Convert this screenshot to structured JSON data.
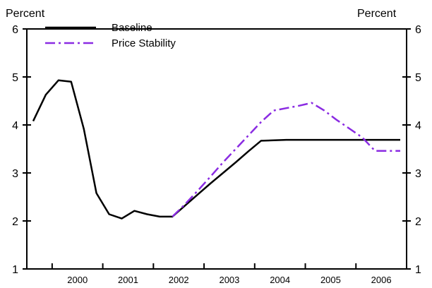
{
  "chart_data": {
    "type": "line",
    "left_axis_label": "Percent",
    "right_axis_label": "Percent",
    "ylim": [
      1,
      6
    ],
    "yticks": [
      "1",
      "2",
      "3",
      "4",
      "5",
      "6"
    ],
    "xlim": [
      1999.5,
      2007
    ],
    "x_tick_labels": [
      "2000",
      "2001",
      "2002",
      "2003",
      "2004",
      "2005",
      "2006"
    ],
    "grid": false,
    "legend_position": "top-left",
    "series": [
      {
        "name": "Baseline",
        "color": "#000000",
        "style": "solid",
        "x": [
          1999.625,
          1999.875,
          2000.125,
          2000.375,
          2000.625,
          2000.875,
          2001.125,
          2001.375,
          2001.625,
          2001.875,
          2002.125,
          2002.375,
          2002.625,
          2002.875,
          2003.125,
          2003.375,
          2003.625,
          2003.875,
          2004.125,
          2004.375,
          2004.625,
          2004.875,
          2005.125,
          2005.375,
          2005.625,
          2005.875,
          2006.125,
          2006.375,
          2006.625,
          2006.875
        ],
        "values": [
          4.08,
          4.63,
          4.93,
          4.9,
          3.92,
          2.58,
          2.14,
          2.05,
          2.21,
          2.14,
          2.09,
          2.09,
          2.32,
          2.55,
          2.78,
          3.0,
          3.22,
          3.45,
          3.67,
          3.68,
          3.69,
          3.69,
          3.69,
          3.69,
          3.69,
          3.69,
          3.69,
          3.69,
          3.69,
          3.69
        ]
      },
      {
        "name": "Price Stability",
        "color": "#8a2be2",
        "style": "dash-dot",
        "x": [
          2002.375,
          2002.625,
          2002.875,
          2003.125,
          2003.375,
          2003.625,
          2003.875,
          2004.125,
          2004.375,
          2004.625,
          2004.875,
          2005.125,
          2005.375,
          2005.625,
          2005.875,
          2006.125,
          2006.375,
          2006.625,
          2006.875
        ],
        "values": [
          2.09,
          2.35,
          2.63,
          2.92,
          3.22,
          3.5,
          3.78,
          4.06,
          4.3,
          4.35,
          4.4,
          4.46,
          4.3,
          4.1,
          3.92,
          3.74,
          3.46,
          3.46,
          3.46
        ]
      }
    ]
  }
}
